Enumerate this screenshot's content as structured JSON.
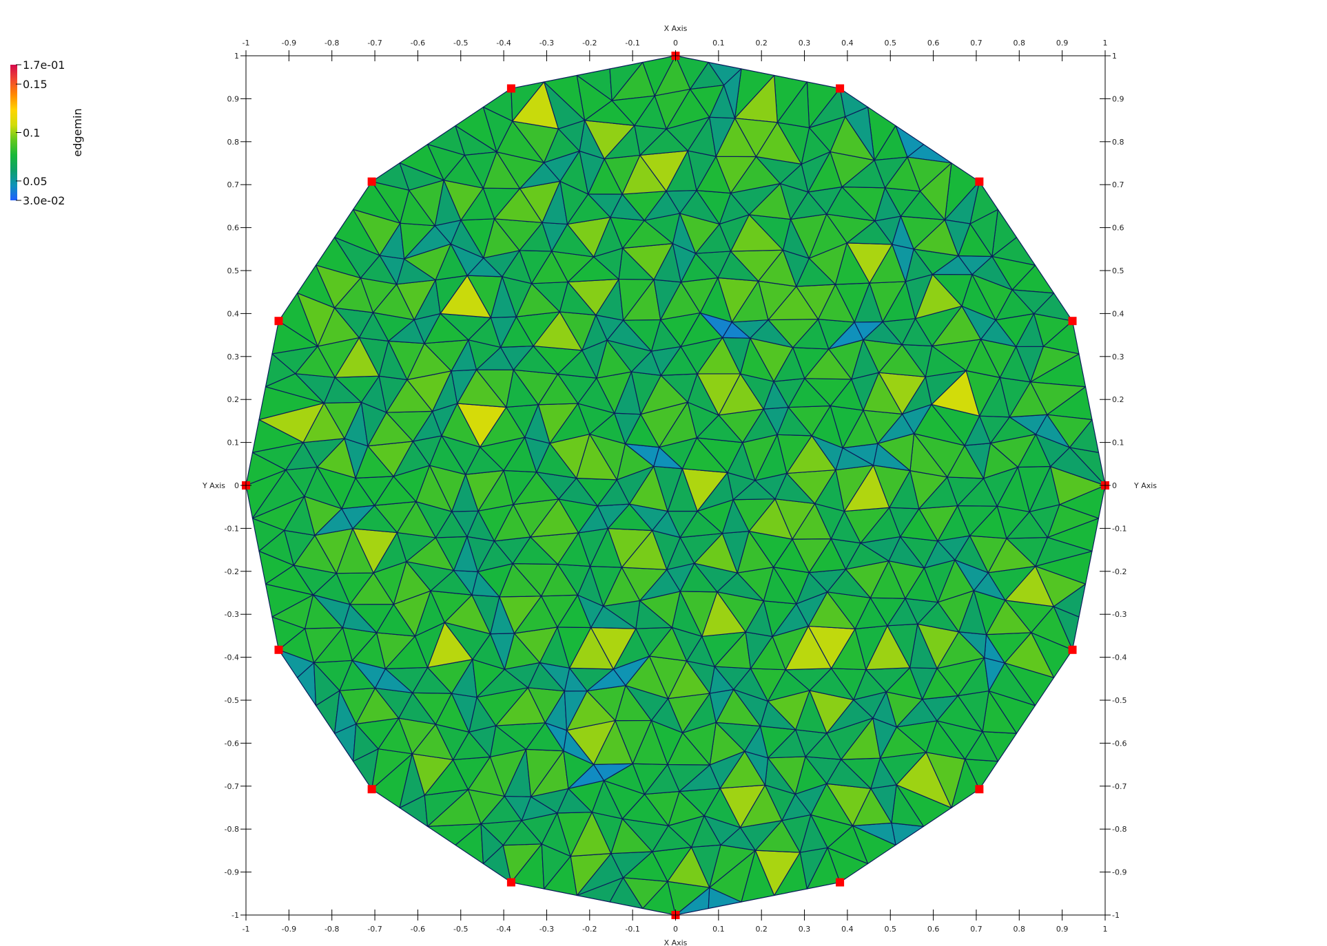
{
  "view": {
    "background": "#ffffff",
    "x_range": [
      -1,
      1
    ],
    "y_range": [
      -1,
      1
    ],
    "x_axis_title": "X Axis",
    "y_axis_title": "Y Axis",
    "x_tick_values": [
      -1,
      -0.9,
      -0.8,
      -0.7,
      -0.6,
      -0.5,
      -0.4,
      -0.3,
      -0.2,
      -0.1,
      0,
      0.1,
      0.2,
      0.3,
      0.4,
      0.5,
      0.6,
      0.7,
      0.8,
      0.9,
      1
    ],
    "y_tick_values": [
      -1,
      -0.9,
      -0.8,
      -0.7,
      -0.6,
      -0.5,
      -0.4,
      -0.3,
      -0.2,
      -0.1,
      0,
      0.1,
      0.2,
      0.3,
      0.4,
      0.5,
      0.6,
      0.7,
      0.8,
      0.9,
      1
    ],
    "x_tick_labels": [
      "-1",
      "-0.9",
      "-0.8",
      "-0.7",
      "-0.6",
      "-0.5",
      "-0.4",
      "-0.3",
      "-0.2",
      "-0.1",
      "0",
      "0.1",
      "0.2",
      "0.3",
      "0.4",
      "0.5",
      "0.6",
      "0.7",
      "0.8",
      "0.9",
      "1"
    ],
    "y_tick_labels": [
      "-1",
      "-0.9",
      "-0.8",
      "-0.7",
      "-0.6",
      "-0.5",
      "-0.4",
      "-0.3",
      "-0.2",
      "-0.1",
      "0",
      "0.1",
      "0.2",
      "0.3",
      "0.4",
      "0.5",
      "0.6",
      "0.7",
      "0.8",
      "0.9",
      "1"
    ]
  },
  "colorbar": {
    "title": "edgemin",
    "min": 0.03,
    "max": 0.17,
    "min_label": "3.0e-02",
    "max_label": "1.7e-01",
    "ticks": [
      {
        "value": 0.05,
        "label": "0.05"
      },
      {
        "value": 0.1,
        "label": "0.1"
      },
      {
        "value": 0.15,
        "label": "0.15"
      }
    ],
    "colormap": [
      "#1f5fff",
      "#0f93b8",
      "#0ea06a",
      "#18b83a",
      "#62c81d",
      "#d2dc0a",
      "#ffd400",
      "#ff8a00",
      "#f04830",
      "#d4094c"
    ]
  },
  "mesh": {
    "domain_shape": "regular polygon (hexadecamagon) approximating the unit circle",
    "boundary_vertex_count": 16,
    "radius": 1,
    "edge_color": "#0b1d5c",
    "boundary_marker_color": "#ff0000",
    "field_name": "edgemin",
    "typical_field_value": 0.065,
    "interior_spacing": 0.085
  }
}
